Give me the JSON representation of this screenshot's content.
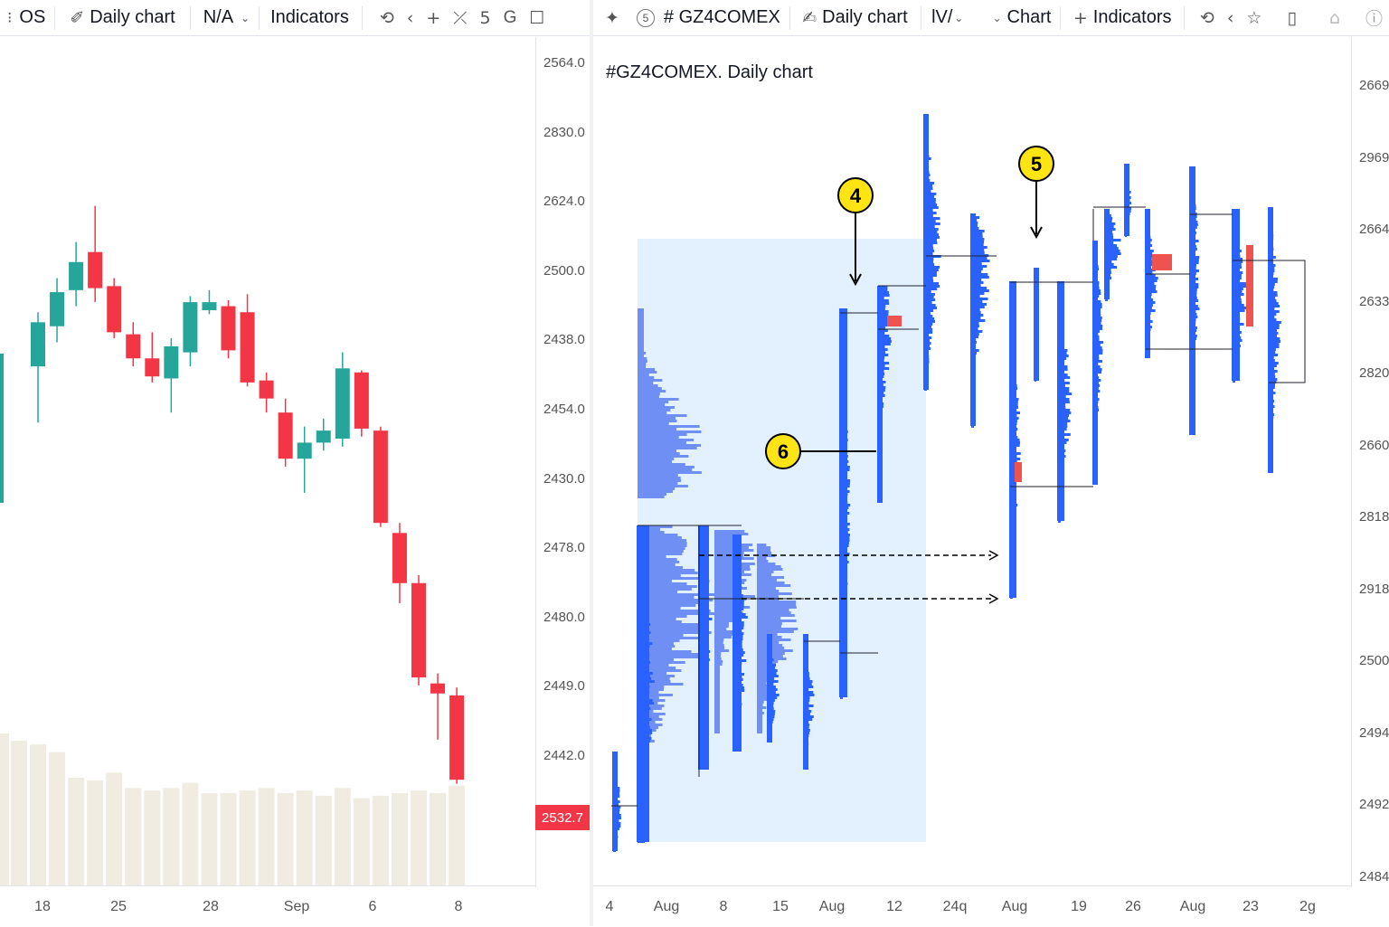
{
  "left_toolbar": {
    "symbol_label": "OS",
    "interval_label": "Daily chart",
    "chart_type_label": "N/A",
    "indicators_label": "Indicators",
    "replay_icon": "replay-icon",
    "extra_icons": [
      "back-arrow-icon",
      "plus-icon",
      "tool-icon",
      "five-icon",
      "g-icon",
      "square-icon"
    ],
    "glyph_5": "5",
    "glyph_g": "G"
  },
  "right_toolbar": {
    "circle_num": "5",
    "symbol_label": "# GZ4COMEX",
    "interval_label": "Daily chart",
    "chart_type_label": "lV/",
    "chart_label": "Chart",
    "indicators_label": "Indicators"
  },
  "left_chart": {
    "price_labels": [
      "2564.0",
      "2830.0",
      "2624.0",
      "2500.0",
      "2438.0",
      "2454.0",
      "2430.0",
      "2478.0",
      "2480.0",
      "2449.0",
      "2442.0"
    ],
    "last_price": "2532.7",
    "time_labels": [
      "18",
      "25",
      "28",
      "Sep",
      "6",
      "8"
    ],
    "colors": {
      "up": "#26a69a",
      "down": "#f23645",
      "volume": "#f0ece2"
    },
    "candles": [
      {
        "o": 2448,
        "h": 2475,
        "l": 2420,
        "c": 2470
      },
      {
        "o": 2468,
        "h": 2492,
        "l": 2460,
        "c": 2485
      },
      {
        "o": 2486,
        "h": 2510,
        "l": 2478,
        "c": 2500
      },
      {
        "o": 2505,
        "h": 2528,
        "l": 2480,
        "c": 2487
      },
      {
        "o": 2488,
        "h": 2492,
        "l": 2462,
        "c": 2465
      },
      {
        "o": 2464,
        "h": 2470,
        "l": 2448,
        "c": 2452
      },
      {
        "o": 2452,
        "h": 2465,
        "l": 2440,
        "c": 2443
      },
      {
        "o": 2442,
        "h": 2462,
        "l": 2425,
        "c": 2458
      },
      {
        "o": 2455,
        "h": 2483,
        "l": 2448,
        "c": 2480
      },
      {
        "o": 2476,
        "h": 2486,
        "l": 2474,
        "c": 2480
      },
      {
        "o": 2478,
        "h": 2481,
        "l": 2452,
        "c": 2456
      },
      {
        "o": 2475,
        "h": 2484,
        "l": 2438,
        "c": 2440
      },
      {
        "o": 2441,
        "h": 2445,
        "l": 2425,
        "c": 2432
      },
      {
        "o": 2425,
        "h": 2432,
        "l": 2398,
        "c": 2402
      },
      {
        "o": 2402,
        "h": 2418,
        "l": 2385,
        "c": 2410
      },
      {
        "o": 2410,
        "h": 2422,
        "l": 2406,
        "c": 2416
      },
      {
        "o": 2412,
        "h": 2455,
        "l": 2408,
        "c": 2447
      },
      {
        "o": 2445,
        "h": 2446,
        "l": 2413,
        "c": 2417
      },
      {
        "o": 2416,
        "h": 2418,
        "l": 2368,
        "c": 2370
      },
      {
        "o": 2365,
        "h": 2370,
        "l": 2330,
        "c": 2340
      },
      {
        "o": 2340,
        "h": 2344,
        "l": 2289,
        "c": 2293
      },
      {
        "o": 2290,
        "h": 2295,
        "l": 2262,
        "c": 2285
      },
      {
        "o": 2284,
        "h": 2288,
        "l": 2240,
        "c": 2242
      }
    ],
    "volumes": [
      55,
      52,
      42,
      41,
      44,
      38,
      37,
      38,
      40,
      36,
      36,
      37,
      38,
      36,
      37,
      35,
      38,
      34,
      35,
      36,
      37,
      36,
      39
    ]
  },
  "right_chart": {
    "title": "#GZ4COMEX. Daily chart",
    "price_labels": [
      "2669",
      "2969",
      "2664",
      "2633",
      "2820",
      "2660",
      "2818",
      "2918",
      "2500",
      "2494",
      "2492",
      "2484"
    ],
    "time_labels": [
      "4",
      "Aug",
      "8",
      "15",
      "Aug",
      "12",
      "24q",
      "Aug",
      "19",
      "26",
      "Aug",
      "23",
      "2g"
    ],
    "callouts": [
      "4",
      "5",
      "6"
    ],
    "colors": {
      "profile_blue": "#2962ff",
      "profile_light": "#6f8ff5",
      "area": "#e3f0fd",
      "poc": "#ef5350",
      "callout": "#ffe414"
    }
  }
}
